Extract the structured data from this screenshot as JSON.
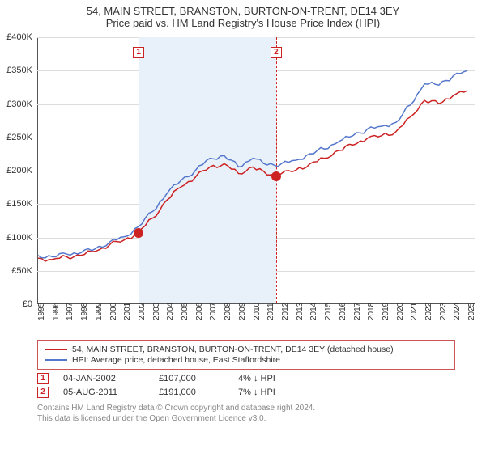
{
  "title_line1": "54, MAIN STREET, BRANSTON, BURTON-ON-TRENT, DE14 3EY",
  "title_line2": "Price paid vs. HM Land Registry's House Price Index (HPI)",
  "chart": {
    "type": "line",
    "background_color": "#ffffff",
    "grid_color": "#dddddd",
    "axis_color": "#555555",
    "x_label_fontsize": 10,
    "y_label_fontsize": 11,
    "years": [
      1995,
      1996,
      1997,
      1998,
      1999,
      2000,
      2001,
      2002,
      2003,
      2004,
      2005,
      2006,
      2007,
      2008,
      2009,
      2010,
      2011,
      2012,
      2013,
      2014,
      2015,
      2016,
      2017,
      2018,
      2019,
      2020,
      2021,
      2022,
      2023,
      2024,
      2025
    ],
    "xlim": [
      1995,
      2025.5
    ],
    "ylim": [
      0,
      400000
    ],
    "ytick_step": 50000,
    "ytick_labels": [
      "£0",
      "£50K",
      "£100K",
      "£150K",
      "£200K",
      "£250K",
      "£300K",
      "£350K",
      "£400K"
    ],
    "series": [
      {
        "name": "property",
        "label": "54, MAIN STREET, BRANSTON, BURTON-ON-TRENT, DE14 3EY (detached house)",
        "color": "#cc2222",
        "line_width": 1.5,
        "data": [
          [
            1995,
            68000
          ],
          [
            1996,
            66000
          ],
          [
            1997,
            70000
          ],
          [
            1998,
            72000
          ],
          [
            1999,
            78000
          ],
          [
            2000,
            88000
          ],
          [
            2001,
            95000
          ],
          [
            2002,
            107000
          ],
          [
            2003,
            128000
          ],
          [
            2004,
            155000
          ],
          [
            2005,
            175000
          ],
          [
            2006,
            190000
          ],
          [
            2007,
            205000
          ],
          [
            2008,
            210000
          ],
          [
            2009,
            195000
          ],
          [
            2010,
            205000
          ],
          [
            2011,
            193000
          ],
          [
            2012,
            195000
          ],
          [
            2013,
            200000
          ],
          [
            2014,
            210000
          ],
          [
            2015,
            218000
          ],
          [
            2016,
            230000
          ],
          [
            2017,
            238000
          ],
          [
            2018,
            248000
          ],
          [
            2019,
            252000
          ],
          [
            2020,
            258000
          ],
          [
            2021,
            280000
          ],
          [
            2022,
            305000
          ],
          [
            2023,
            300000
          ],
          [
            2024,
            312000
          ],
          [
            2025,
            320000
          ]
        ]
      },
      {
        "name": "hpi",
        "label": "HPI: Average price, detached house, East Staffordshire",
        "color": "#5577cc",
        "line_width": 1.5,
        "data": [
          [
            1995,
            72000
          ],
          [
            1996,
            70000
          ],
          [
            1997,
            74000
          ],
          [
            1998,
            76000
          ],
          [
            1999,
            82000
          ],
          [
            2000,
            92000
          ],
          [
            2001,
            100000
          ],
          [
            2002,
            115000
          ],
          [
            2003,
            138000
          ],
          [
            2004,
            165000
          ],
          [
            2005,
            185000
          ],
          [
            2006,
            200000
          ],
          [
            2007,
            218000
          ],
          [
            2008,
            222000
          ],
          [
            2009,
            205000
          ],
          [
            2010,
            218000
          ],
          [
            2011,
            208000
          ],
          [
            2012,
            210000
          ],
          [
            2013,
            215000
          ],
          [
            2014,
            225000
          ],
          [
            2015,
            232000
          ],
          [
            2016,
            243000
          ],
          [
            2017,
            252000
          ],
          [
            2018,
            262000
          ],
          [
            2019,
            266000
          ],
          [
            2020,
            272000
          ],
          [
            2021,
            298000
          ],
          [
            2022,
            330000
          ],
          [
            2023,
            328000
          ],
          [
            2024,
            342000
          ],
          [
            2025,
            350000
          ]
        ]
      }
    ],
    "highlight_bands": [
      {
        "from": 2002.01,
        "to": 2011.6,
        "color": "#e8f0fa"
      }
    ],
    "event_lines": [
      {
        "idx": "1",
        "x": 2002.01,
        "color": "#cc2222"
      },
      {
        "idx": "2",
        "x": 2011.6,
        "color": "#cc2222"
      }
    ],
    "markers": [
      {
        "x": 2002.01,
        "y": 107000,
        "color": "#cc2222",
        "size": 6
      },
      {
        "x": 2011.6,
        "y": 191000,
        "color": "#cc2222",
        "size": 6
      }
    ]
  },
  "legend": {
    "border_color": "#cc5555",
    "items": [
      {
        "color": "#cc2222",
        "label_ref": "chart.series.0.label"
      },
      {
        "color": "#5577cc",
        "label_ref": "chart.series.1.label"
      }
    ]
  },
  "events_table": [
    {
      "idx": "1",
      "color": "#cc2222",
      "date": "04-JAN-2002",
      "price": "£107,000",
      "delta": "4% ↓ HPI"
    },
    {
      "idx": "2",
      "color": "#cc2222",
      "date": "05-AUG-2011",
      "price": "£191,000",
      "delta": "7% ↓ HPI"
    }
  ],
  "footer_line1": "Contains HM Land Registry data © Crown copyright and database right 2024.",
  "footer_line2": "This data is licensed under the Open Government Licence v3.0."
}
